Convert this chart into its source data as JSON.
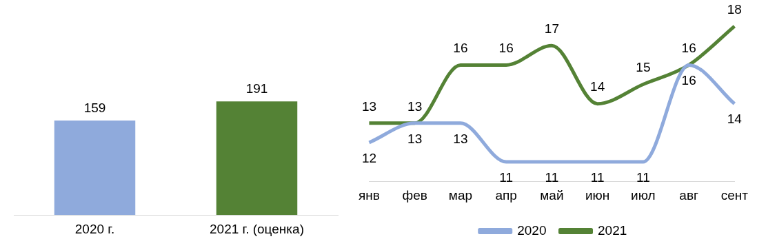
{
  "chart_data": [
    {
      "type": "bar",
      "categories": [
        "2020 г.",
        "2021 г. (оценка)"
      ],
      "values": [
        159,
        191
      ],
      "colors": [
        "#8faadc",
        "#548235"
      ],
      "data_labels": true,
      "legend": false,
      "grid": false
    },
    {
      "type": "line",
      "categories": [
        "янв",
        "фев",
        "мар",
        "апр",
        "май",
        "июн",
        "июл",
        "авг",
        "сент"
      ],
      "series": [
        {
          "name": "2020",
          "color": "#8faadc",
          "values": [
            12,
            13,
            13,
            11,
            11,
            11,
            11,
            16,
            14
          ]
        },
        {
          "name": "2021",
          "color": "#548235",
          "values": [
            13,
            13,
            16,
            16,
            17,
            14,
            15,
            16,
            18
          ]
        }
      ],
      "data_labels": true,
      "legend": "bottom",
      "grid": false,
      "marker": "none"
    }
  ]
}
